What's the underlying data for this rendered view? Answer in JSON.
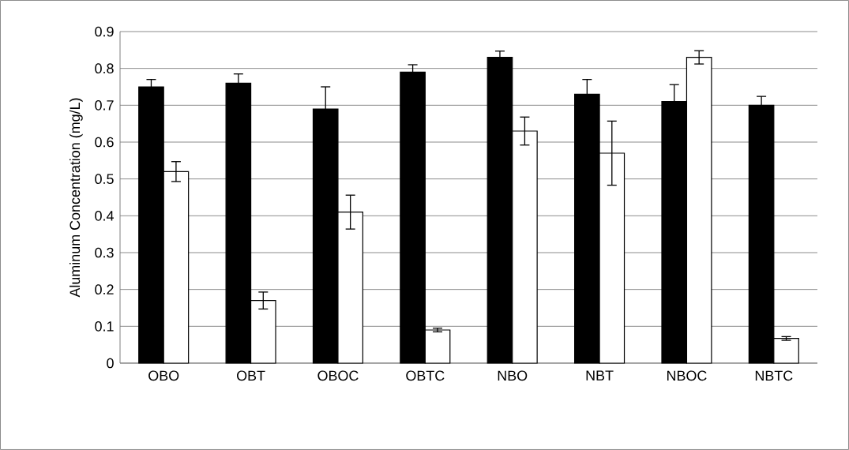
{
  "chart_data": {
    "type": "bar",
    "ylabel": "Aluminum Concentration (mg/L)",
    "categories": [
      "OBO",
      "OBT",
      "OBOC",
      "OBTC",
      "NBO",
      "NBT",
      "NBOC",
      "NBTC"
    ],
    "series": [
      {
        "color": "#000000",
        "values": [
          0.75,
          0.76,
          0.69,
          0.79,
          0.83,
          0.73,
          0.71,
          0.7
        ],
        "errors": [
          0.02,
          0.025,
          0.06,
          0.02,
          0.017,
          0.04,
          0.046,
          0.024
        ]
      },
      {
        "color": "#ffffff",
        "values": [
          0.52,
          0.17,
          0.41,
          0.09,
          0.63,
          0.57,
          0.83,
          0.067
        ],
        "errors": [
          0.027,
          0.023,
          0.046,
          0.005,
          0.038,
          0.087,
          0.018,
          0.005
        ]
      }
    ],
    "ylim": [
      0,
      0.9
    ],
    "yticks": [
      0,
      0.1,
      0.2,
      0.3,
      0.4,
      0.5,
      0.6,
      0.7,
      0.8,
      0.9
    ],
    "grid": "y"
  }
}
